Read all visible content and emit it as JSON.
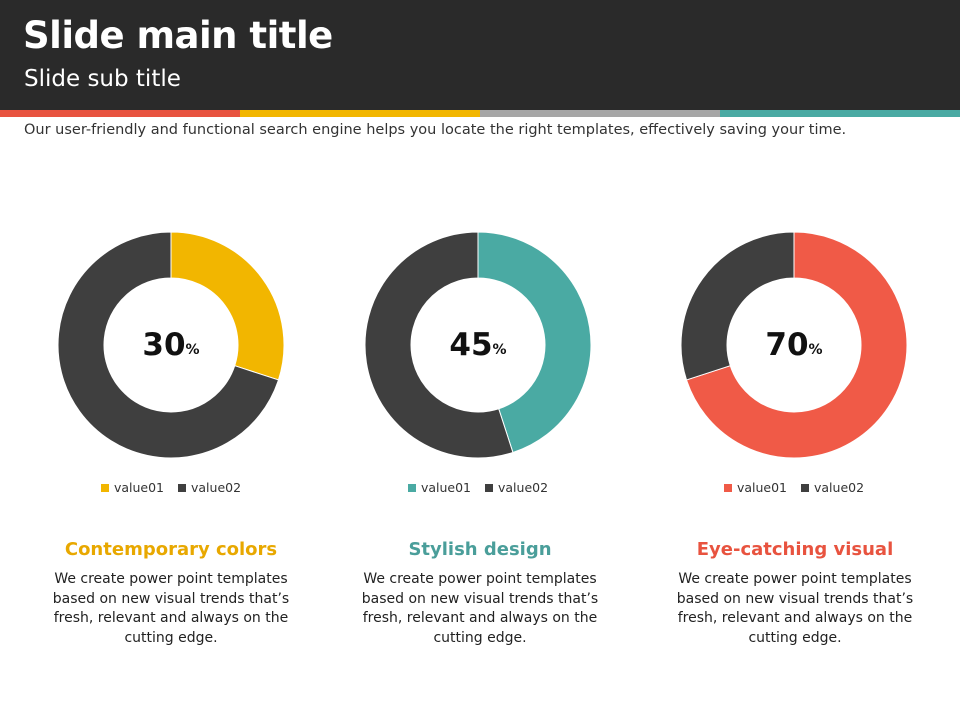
{
  "header": {
    "title": "Slide main title",
    "subtitle": "Slide sub title",
    "stripe_colors": [
      "#e8533f",
      "#f2b600",
      "#a6a6a6",
      "#4aaaa3"
    ]
  },
  "description": "Our user-friendly and functional search engine helps you locate the right templates, effectively saving your time.",
  "chart_data": [
    {
      "type": "pie",
      "categories": [
        "value01",
        "value02"
      ],
      "values": [
        30,
        70
      ],
      "colors": [
        "#f2b600",
        "#3f3f3f"
      ],
      "center_label": "30",
      "center_unit": "%"
    },
    {
      "type": "pie",
      "categories": [
        "value01",
        "value02"
      ],
      "values": [
        45,
        55
      ],
      "colors": [
        "#4aaaa3",
        "#3f3f3f"
      ],
      "center_label": "45",
      "center_unit": "%"
    },
    {
      "type": "pie",
      "categories": [
        "value01",
        "value02"
      ],
      "values": [
        70,
        30
      ],
      "colors": [
        "#f05a47",
        "#3f3f3f"
      ],
      "center_label": "70",
      "center_unit": "%"
    }
  ],
  "columns": [
    {
      "title": "Contemporary colors",
      "color": "#e8a800",
      "text": "We create power point templates based on new visual trends that’s fresh, relevant and always on the cutting edge."
    },
    {
      "title": "Stylish design",
      "color": "#4a9e9a",
      "text": "We create power point templates based on new visual trends that’s fresh, relevant and always on the cutting edge."
    },
    {
      "title": "Eye-catching visual",
      "color": "#e8533f",
      "text": "We create power point templates based on new visual trends that’s fresh, relevant and always on the cutting edge."
    }
  ]
}
